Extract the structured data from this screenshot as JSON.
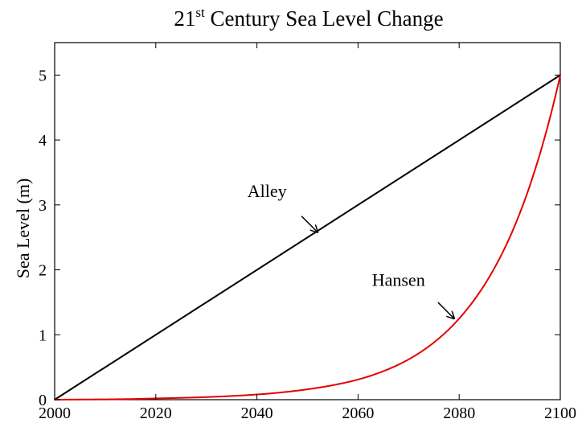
{
  "chart_data": {
    "type": "line",
    "title": {
      "base": "21",
      "superscript": "st",
      "rest": " Century Sea Level Change"
    },
    "xlabel": "",
    "ylabel": "Sea Level (m)",
    "xlim": [
      2000,
      2100
    ],
    "ylim": [
      0,
      5.5
    ],
    "xticks": [
      2000,
      2020,
      2040,
      2060,
      2080,
      2100
    ],
    "yticks": [
      0,
      1,
      2,
      3,
      4,
      5
    ],
    "xtick_labels": [
      "2000",
      "2020",
      "2040",
      "2060",
      "2080",
      "2100"
    ],
    "ytick_labels": [
      "0",
      "1",
      "2",
      "3",
      "4",
      "5"
    ],
    "grid": false,
    "series": [
      {
        "name": "Alley",
        "color": "#000000",
        "x": [
          2000,
          2100
        ],
        "y": [
          0,
          5
        ]
      },
      {
        "name": "Hansen",
        "color": "#e60000",
        "x": [
          2000,
          2010,
          2020,
          2030,
          2040,
          2050,
          2060,
          2070,
          2080,
          2090,
          2095,
          2100
        ],
        "y": [
          0,
          0.005,
          0.02,
          0.04,
          0.08,
          0.16,
          0.31,
          0.62,
          1.25,
          2.5,
          3.54,
          5.0
        ]
      }
    ],
    "annotations": [
      {
        "text": "Alley",
        "series": "Alley",
        "arrow_target": [
          2052,
          2.58
        ],
        "text_at": [
          2042,
          3.12
        ]
      },
      {
        "text": "Hansen",
        "series": "Hansen",
        "arrow_target": [
          2079,
          1.25
        ],
        "text_at": [
          2068,
          1.75
        ]
      }
    ]
  }
}
